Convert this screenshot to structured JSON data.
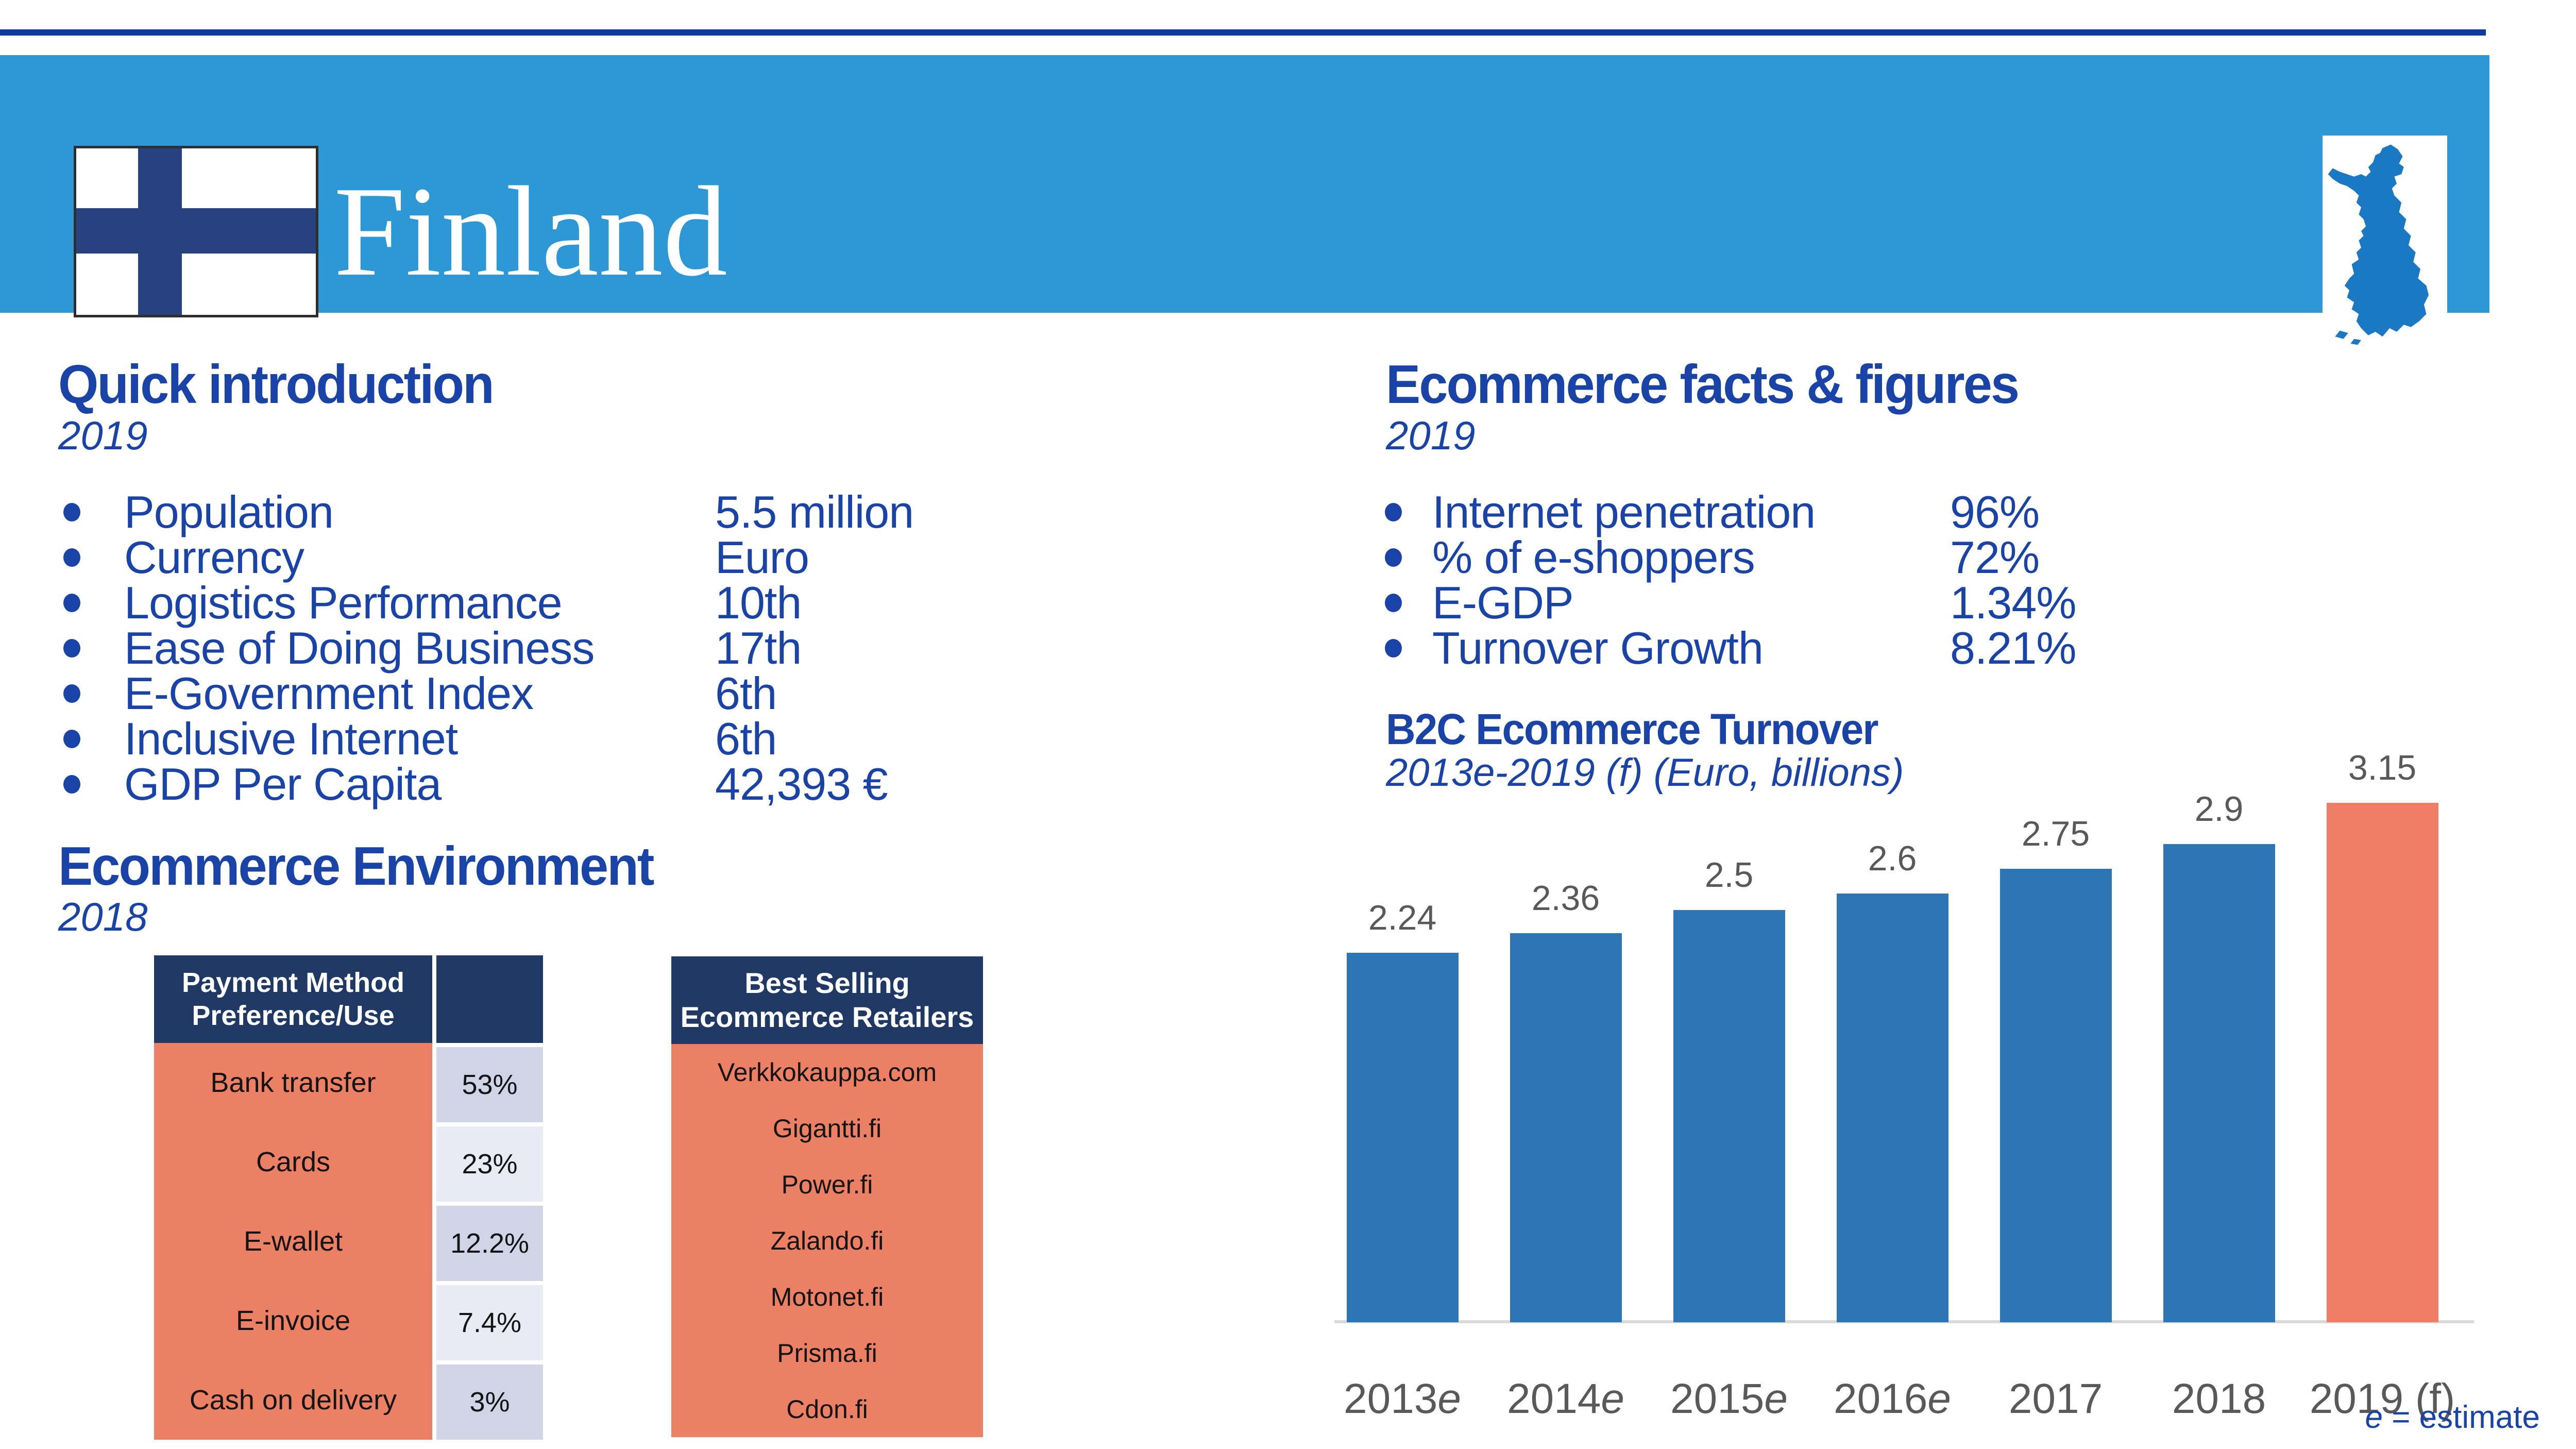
{
  "header": {
    "title": "Finland"
  },
  "colors": {
    "top_line": "#0C3AA4",
    "banner_blue": "#2E98D7",
    "heading_blue": "#1A43A8",
    "table_header_navy": "#1F3864",
    "table_salmon": "#EC8065",
    "value_cell_dark": "#CFD4E6",
    "value_cell_light": "#E9EBF4",
    "bar_blue": "#2E75B6",
    "bar_highlight": "#ED7D64",
    "chart_text_gray": "#595959",
    "flag_cross_navy": "#27427F",
    "map_blue": "#1B78C2"
  },
  "quick_intro": {
    "title": "Quick introduction",
    "year": "2019",
    "items": [
      {
        "label": "Population",
        "value": "5.5 million"
      },
      {
        "label": "Currency",
        "value": "Euro"
      },
      {
        "label": "Logistics Performance",
        "value": "10th"
      },
      {
        "label": "Ease of Doing Business",
        "value": "17th"
      },
      {
        "label": "E-Government Index",
        "value": "6th"
      },
      {
        "label": "Inclusive Internet",
        "value": "6th"
      },
      {
        "label": "GDP Per Capita",
        "value": "42,393 €"
      }
    ]
  },
  "ecommerce_facts": {
    "title": "Ecommerce facts & figures",
    "year": "2019",
    "items": [
      {
        "label": "Internet penetration",
        "value": "96%"
      },
      {
        "label": "% of e-shoppers",
        "value": "72%"
      },
      {
        "label": "E-GDP",
        "value": "1.34%"
      },
      {
        "label": "Turnover Growth",
        "value": "8.21%"
      }
    ]
  },
  "ecommerce_environment": {
    "title": "Ecommerce Environment",
    "year": "2018",
    "payment_table": {
      "header_line1": "Payment Method",
      "header_line2": "Preference/Use",
      "rows": [
        {
          "label": "Bank transfer",
          "value": "53%"
        },
        {
          "label": "Cards",
          "value": "23%"
        },
        {
          "label": "E-wallet",
          "value": "12.2%"
        },
        {
          "label": "E-invoice",
          "value": "7.4%"
        },
        {
          "label": "Cash on delivery",
          "value": "3%"
        }
      ]
    },
    "retailers_table": {
      "header_line1": "Best Selling",
      "header_line2": "Ecommerce Retailers",
      "rows": [
        "Verkkokauppa.com",
        "Gigantti.fi",
        "Power.fi",
        "Zalando.fi",
        "Motonet.fi",
        "Prisma.fi",
        "Cdon.fi"
      ]
    }
  },
  "chart_data": {
    "type": "bar",
    "title": "B2C Ecommerce Turnover",
    "subtitle": "2013e-2019 (f) (Euro, billions)",
    "categories": [
      {
        "year": "2013",
        "suffix": "e"
      },
      {
        "year": "2014",
        "suffix": "e"
      },
      {
        "year": "2015",
        "suffix": "e"
      },
      {
        "year": "2016",
        "suffix": "e"
      },
      {
        "year": "2017",
        "suffix": ""
      },
      {
        "year": "2018",
        "suffix": ""
      },
      {
        "year": "2019 (f)",
        "suffix": ""
      }
    ],
    "values": [
      2.24,
      2.36,
      2.5,
      2.6,
      2.75,
      2.9,
      3.15
    ],
    "value_labels": [
      "2.24",
      "2.36",
      "2.5",
      "2.6",
      "2.75",
      "2.9",
      "3.15"
    ],
    "bar_colors": [
      "#2E75B6",
      "#2E75B6",
      "#2E75B6",
      "#2E75B6",
      "#2E75B6",
      "#2E75B6",
      "#ED7D64"
    ],
    "ylim": [
      0,
      3.5
    ],
    "grid": false,
    "legend": null,
    "footnote": "e = estimate"
  },
  "footnote": {
    "prefix": "e",
    "text": " = estimate"
  }
}
